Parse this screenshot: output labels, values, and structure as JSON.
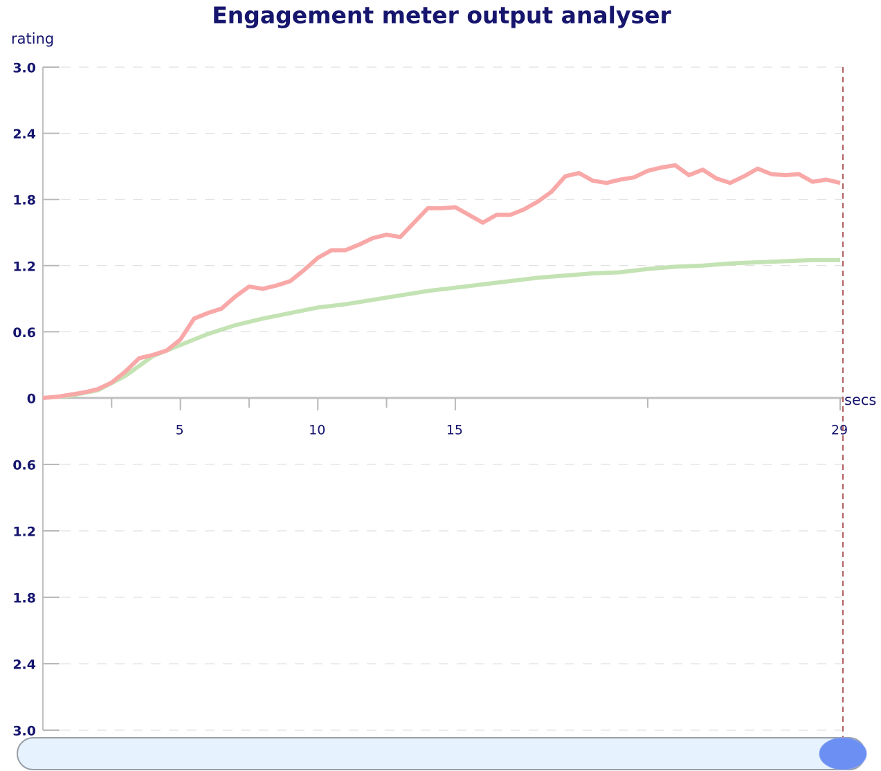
{
  "chart_data": {
    "type": "line",
    "title": "Engagement meter output analyser",
    "y_label": "rating",
    "x_label": "secs",
    "xlim": [
      0,
      29
    ],
    "xticks": [
      5,
      10,
      15,
      29
    ],
    "xminor": [
      2.5,
      7.5,
      12.5,
      22
    ],
    "ylim": [
      0,
      3
    ],
    "yticks": [
      0,
      0.6,
      1.2,
      1.8,
      2.4,
      {
        "value": 3,
        "label": "3.0"
      }
    ],
    "lower_yticks": [
      0.6,
      1.2,
      1.8,
      2.4,
      {
        "value": 3,
        "label": "3.0"
      }
    ],
    "grid": true,
    "cursor": 29,
    "series": [
      {
        "color": "#f9a8a8",
        "x": [
          0,
          0.5,
          1,
          1.5,
          2,
          2.5,
          3,
          3.5,
          4,
          4.5,
          5,
          5.5,
          6,
          6.5,
          7,
          7.5,
          8,
          8.5,
          9,
          9.5,
          10,
          10.5,
          11,
          11.5,
          12,
          12.5,
          13,
          13.5,
          14,
          14.5,
          15,
          15.5,
          16,
          16.5,
          17,
          17.5,
          18,
          18.5,
          19,
          19.5,
          20,
          20.5,
          21,
          21.5,
          22,
          22.5,
          23,
          23.5,
          24,
          24.5,
          25,
          25.5,
          26,
          26.5,
          27,
          27.5,
          28,
          28.5,
          29
        ],
        "values": [
          0,
          0.01,
          0.03,
          0.05,
          0.08,
          0.14,
          0.24,
          0.36,
          0.39,
          0.43,
          0.53,
          0.72,
          0.77,
          0.81,
          0.92,
          1.01,
          0.99,
          1.02,
          1.06,
          1.16,
          1.27,
          1.34,
          1.34,
          1.39,
          1.45,
          1.48,
          1.46,
          1.59,
          1.72,
          1.72,
          1.73,
          1.66,
          1.59,
          1.66,
          1.66,
          1.71,
          1.78,
          1.87,
          2.01,
          2.04,
          1.97,
          1.95,
          1.98,
          2.0,
          2.06,
          2.09,
          2.11,
          2.02,
          2.07,
          1.99,
          1.95,
          2.01,
          2.08,
          2.03,
          2.02,
          2.03,
          1.96,
          1.98,
          1.95
        ]
      },
      {
        "color": "#c4e3b4",
        "x": [
          0,
          1,
          2,
          3,
          4,
          5,
          6,
          7,
          8,
          9,
          10,
          11,
          12,
          13,
          14,
          15,
          16,
          17,
          18,
          19,
          20,
          21,
          22,
          23,
          24,
          25,
          26,
          27,
          28,
          29
        ],
        "values": [
          0,
          0.02,
          0.07,
          0.2,
          0.38,
          0.48,
          0.58,
          0.66,
          0.72,
          0.77,
          0.82,
          0.85,
          0.89,
          0.93,
          0.97,
          1.0,
          1.03,
          1.06,
          1.09,
          1.11,
          1.13,
          1.14,
          1.17,
          1.19,
          1.2,
          1.22,
          1.23,
          1.24,
          1.25,
          1.25
        ]
      }
    ]
  }
}
